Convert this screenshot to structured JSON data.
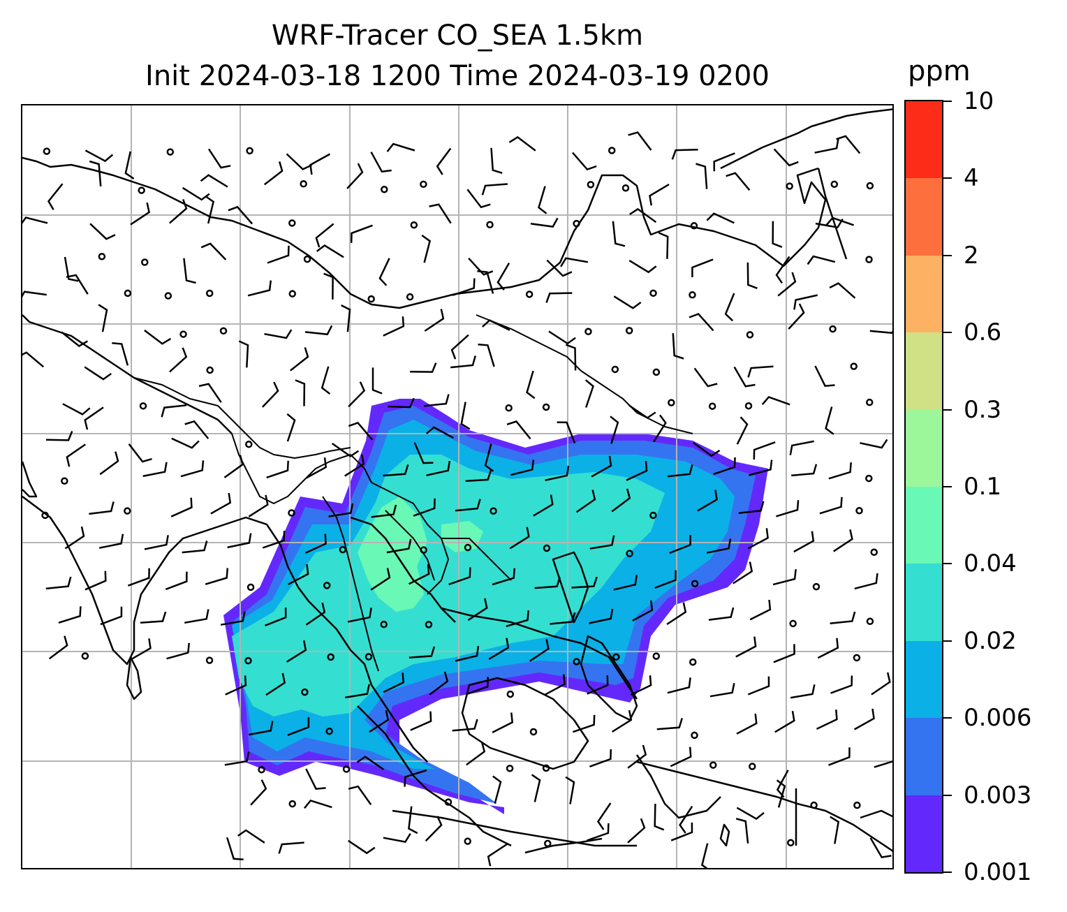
{
  "title": {
    "line1": "WRF-Tracer CO_SEA 1.5km",
    "line2": "Init 2024-03-18 1200 Time 2024-03-19 0200"
  },
  "colorbar": {
    "unit": "ppm",
    "levels": [
      "0.001",
      "0.003",
      "0.006",
      "0.02",
      "0.04",
      "0.1",
      "0.3",
      "0.6",
      "2",
      "4",
      "10"
    ],
    "colors": [
      "#6329fc",
      "#3574f0",
      "#0bb0e7",
      "#34dfd1",
      "#6af8b6",
      "#9cf79a",
      "#d0e085",
      "#fdb163",
      "#fd6f3d",
      "#fc2c18"
    ]
  },
  "map": {
    "gridlines": true,
    "grid_color": "#b4b4b4",
    "coastline_color": "#000000",
    "features": [
      "coastlines",
      "country-borders",
      "CO-tracer-concentration",
      "wind-barbs",
      "calm-wind-circles"
    ]
  }
}
